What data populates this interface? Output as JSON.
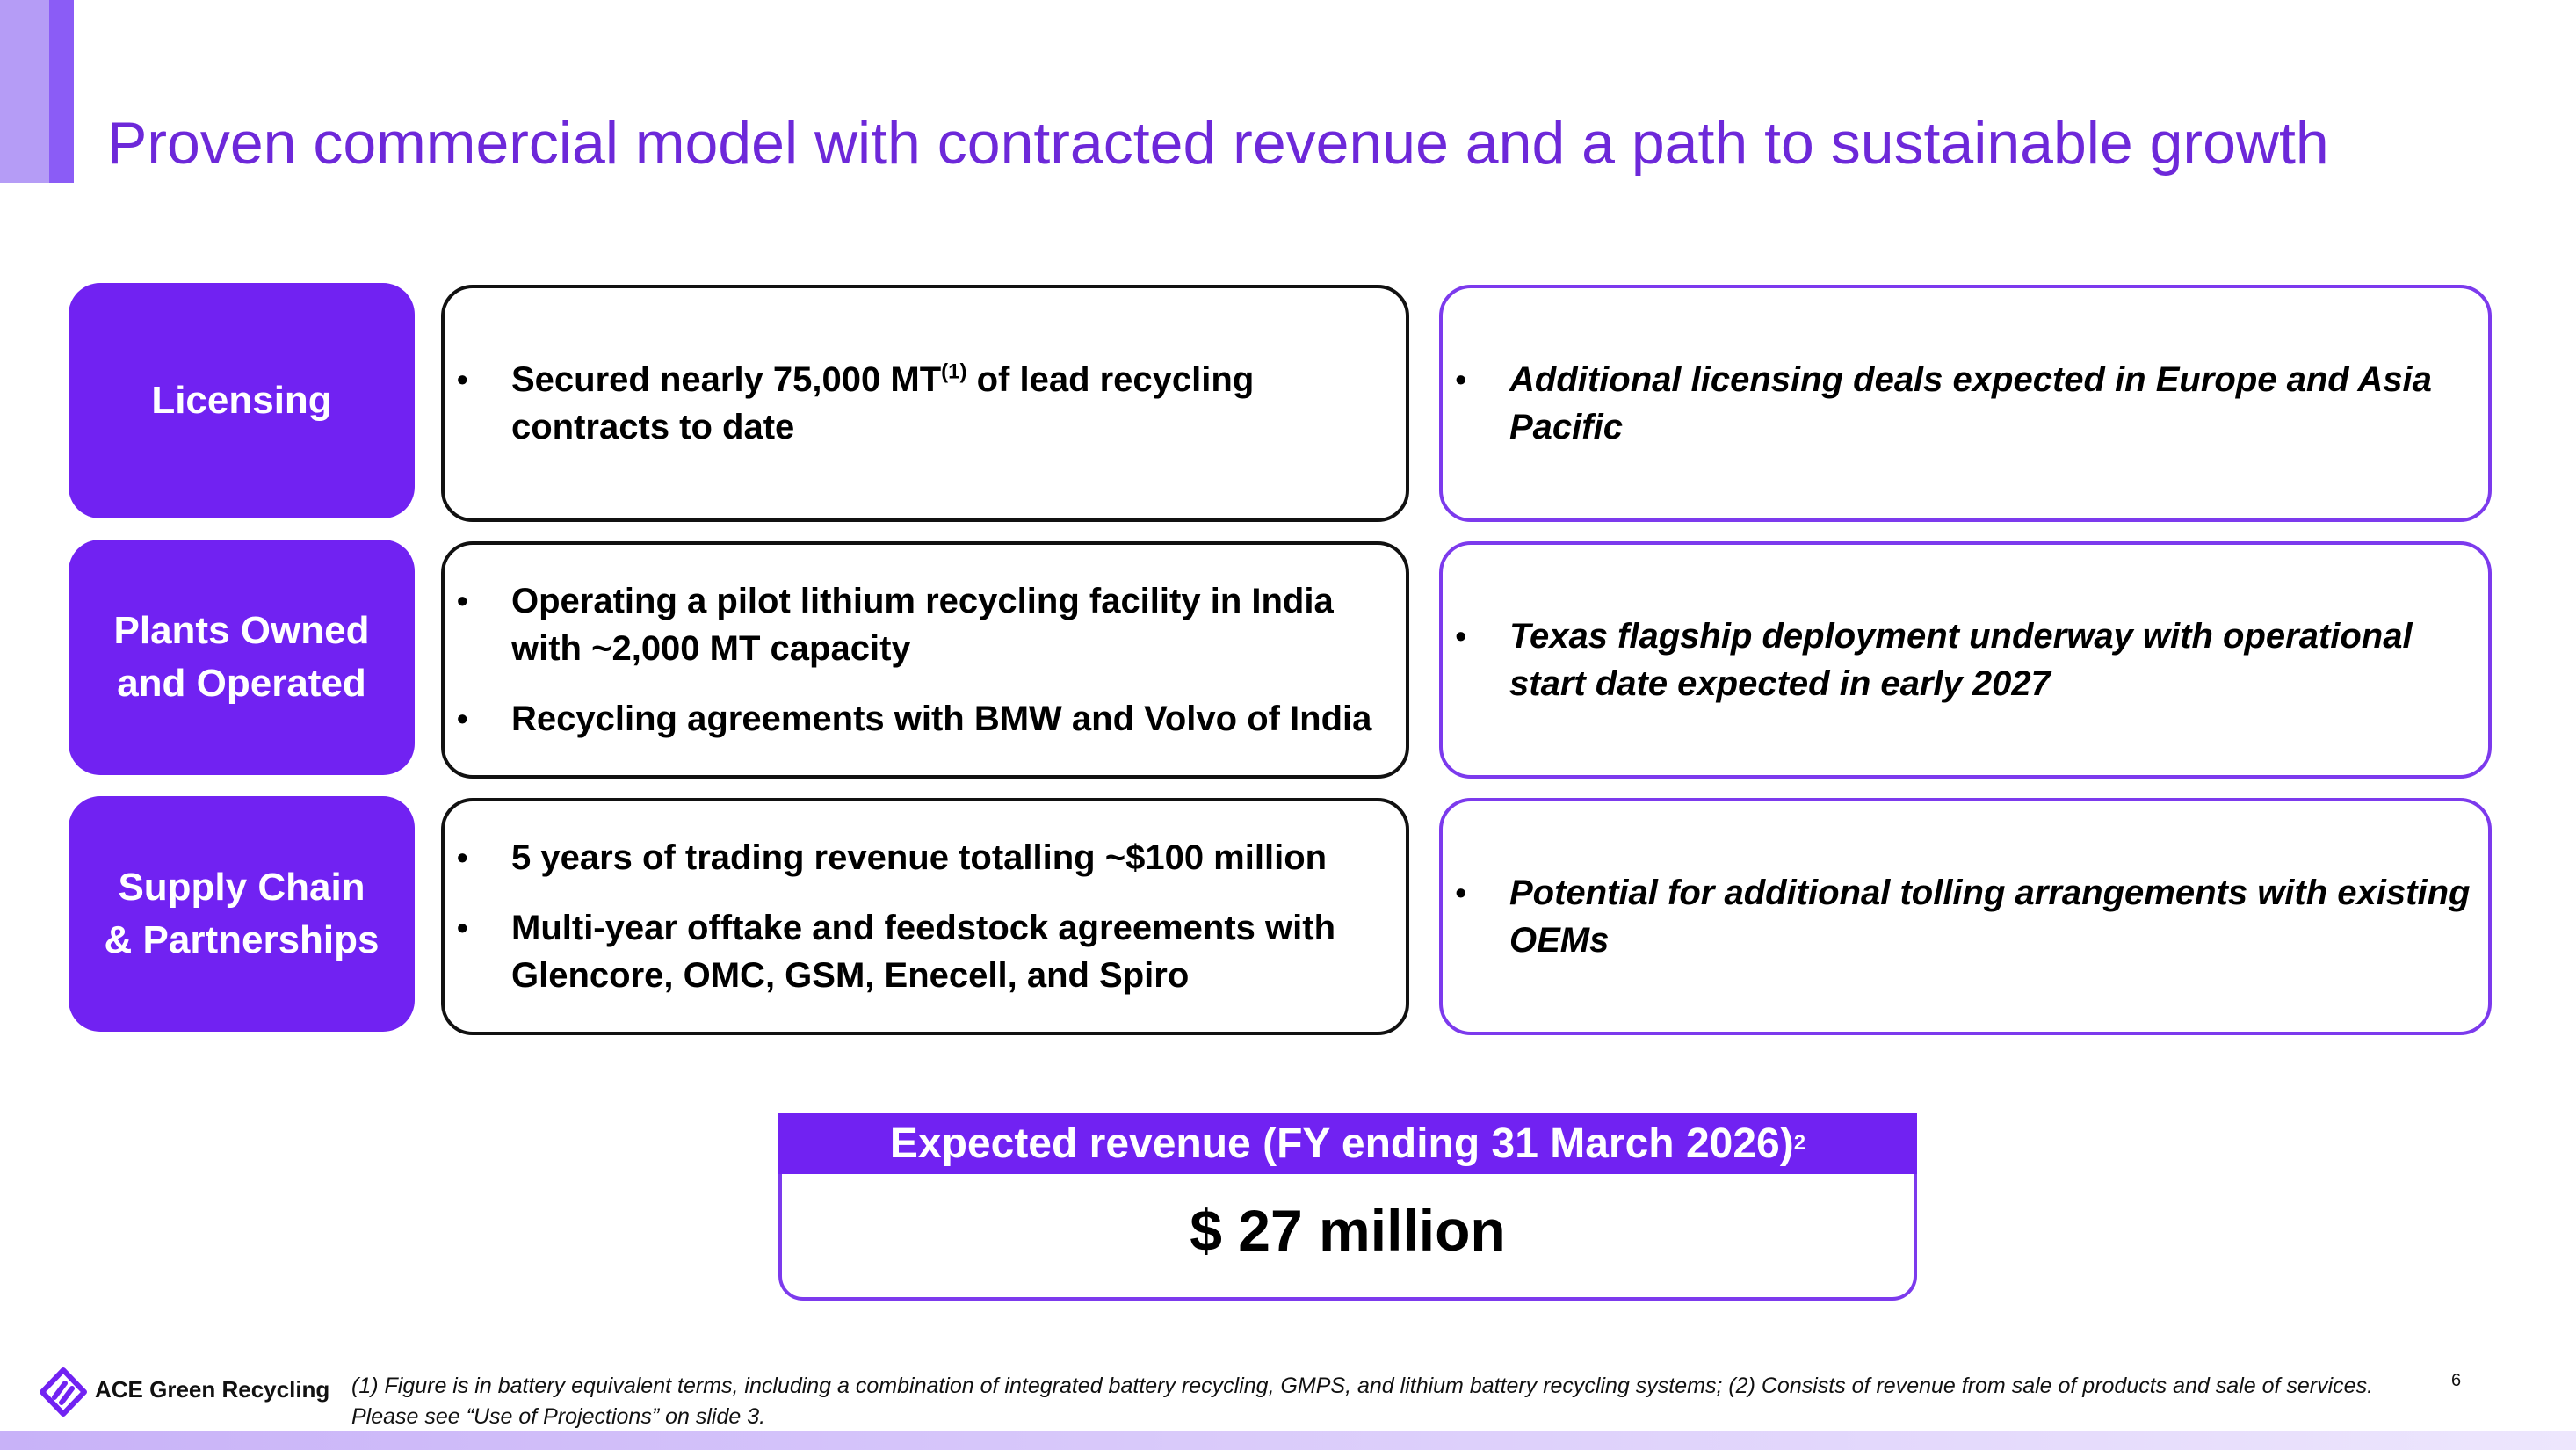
{
  "title": "Proven commercial model with contracted revenue and a path to sustainable growth",
  "bullet_char": "•",
  "rows": [
    {
      "category": "Licensing",
      "current": [
        {
          "text": "Secured nearly 75,000 MT",
          "sup": "(1)",
          "tail": " of lead recycling contracts to date"
        }
      ],
      "outlook": [
        {
          "text": "Additional licensing deals expected in Europe and Asia Pacific"
        }
      ]
    },
    {
      "category": "Plants Owned and Operated",
      "current": [
        {
          "text": "Operating a pilot lithium recycling facility in India with ~2,000 MT capacity"
        },
        {
          "text": " Recycling agreements with BMW and Volvo of India"
        }
      ],
      "outlook": [
        {
          "text": "Texas flagship deployment underway with operational start date expected in early 2027"
        }
      ]
    },
    {
      "category": "Supply Chain & Partnerships",
      "current": [
        {
          "text": "5 years of trading revenue totalling ~$100 million"
        },
        {
          "text": "Multi-year offtake and feedstock agreements with Glencore, OMC, GSM, Enecell, and Spiro"
        }
      ],
      "outlook": [
        {
          "text": "Potential for additional tolling arrangements with existing OEMs"
        }
      ]
    }
  ],
  "revenue": {
    "label": "Expected revenue (FY ending 31 March 2026)",
    "label_sup": "2",
    "value": "$ 27 million"
  },
  "brand": "ACE Green Recycling",
  "footnote": "(1) Figure is in battery equivalent terms, including a combination of integrated battery recycling, GMPS, and lithium battery recycling systems; (2) Consists of revenue from sale of products and sale of services. Please see “Use of Projections” on slide 3.",
  "page_number": "6",
  "colors": {
    "accent": "#7122f2",
    "title": "#6d28d9",
    "outline": "#7c3aed"
  }
}
